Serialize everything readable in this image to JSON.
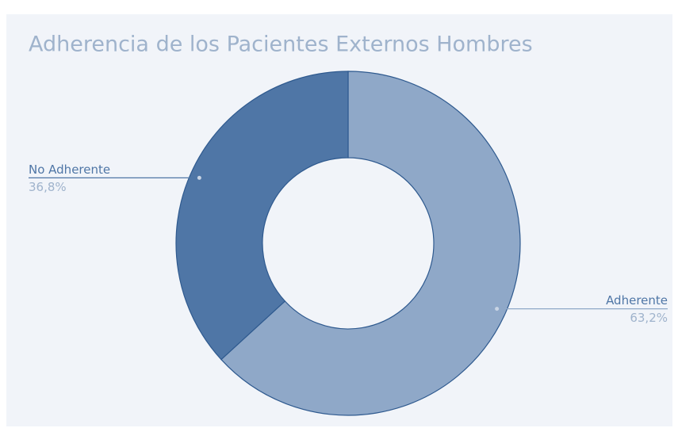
{
  "chart_data": {
    "type": "donut",
    "title": "Adherencia de los Pacientes Externos Hombres",
    "categories": [
      "Adherente",
      "No Adherente"
    ],
    "values": [
      63.2,
      36.8
    ],
    "value_labels": [
      "63,2%",
      "36,8%"
    ],
    "colors": [
      "#8fa8c8",
      "#4f76a6"
    ]
  }
}
